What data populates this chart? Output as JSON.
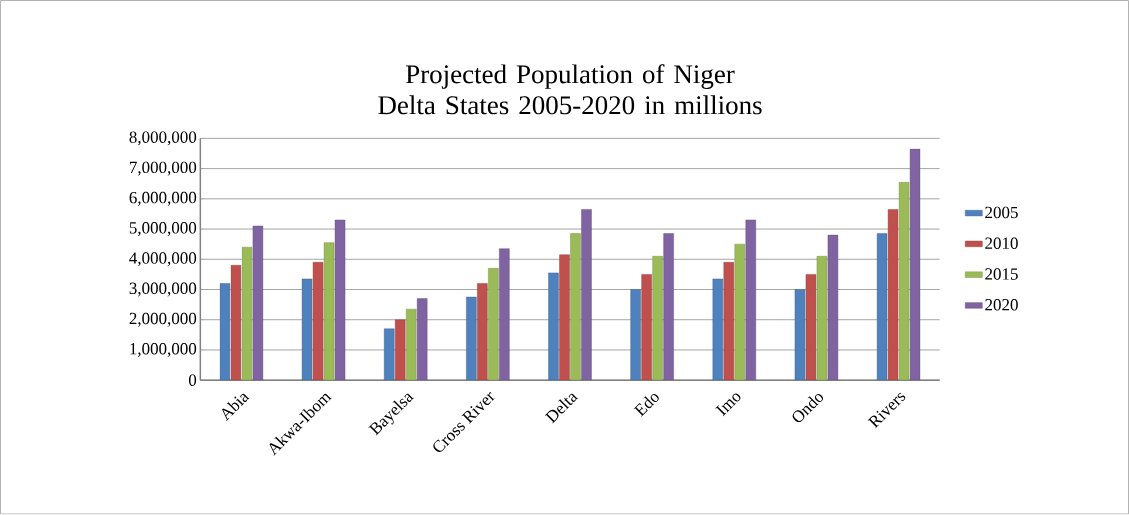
{
  "chart_data": {
    "type": "bar",
    "title": "Projected Population of Niger Delta States 2005-2020 in millions",
    "categories": [
      "Abia",
      "Akwa-Ibom",
      "Bayelsa",
      "Cross River",
      "Delta",
      "Edo",
      "Imo",
      "Ondo",
      "Rivers"
    ],
    "series": [
      {
        "name": "2005",
        "color": "#4f81bd",
        "values": [
          3200000,
          3350000,
          1700000,
          2750000,
          3550000,
          3000000,
          3350000,
          3000000,
          4850000
        ]
      },
      {
        "name": "2010",
        "color": "#c0504d",
        "values": [
          3800000,
          3900000,
          2000000,
          3200000,
          4150000,
          3500000,
          3900000,
          3500000,
          5650000
        ]
      },
      {
        "name": "2015",
        "color": "#9bbb59",
        "values": [
          4400000,
          4550000,
          2350000,
          3700000,
          4850000,
          4100000,
          4500000,
          4100000,
          6550000
        ]
      },
      {
        "name": "2020",
        "color": "#8064a2",
        "values": [
          5100000,
          5300000,
          2700000,
          4350000,
          5650000,
          4850000,
          5300000,
          4800000,
          7650000
        ]
      }
    ],
    "ylim": [
      0,
      8000000
    ],
    "yticks": [
      {
        "value": 0,
        "label": "0"
      },
      {
        "value": 1000000,
        "label": "1,000,000"
      },
      {
        "value": 2000000,
        "label": "2,000,000"
      },
      {
        "value": 3000000,
        "label": "3,000,000"
      },
      {
        "value": 4000000,
        "label": "4,000,000"
      },
      {
        "value": 5000000,
        "label": "5,000,000"
      },
      {
        "value": 6000000,
        "label": "6,000,000"
      },
      {
        "value": 7000000,
        "label": "7,000,000"
      },
      {
        "value": 8000000,
        "label": "8,000,000"
      }
    ],
    "grid": "y",
    "legend": "right"
  }
}
